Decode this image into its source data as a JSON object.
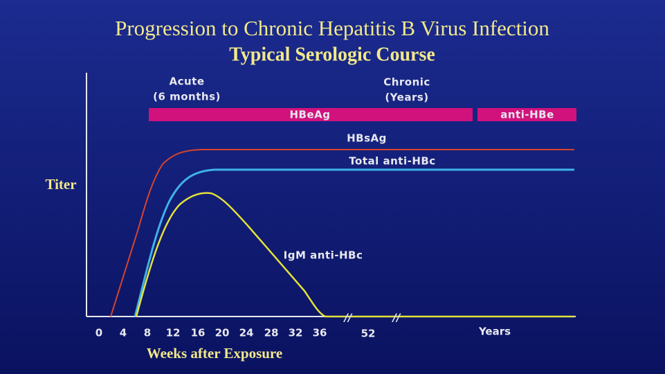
{
  "header": {
    "title": "Progression to Chronic Hepatitis B Virus Infection",
    "subtitle": "Typical Serologic Course"
  },
  "phases": {
    "acute": [
      "Acute",
      "(6 months)"
    ],
    "chronic": [
      "Chronic",
      "(Years)"
    ]
  },
  "bars": [
    "HBeAg",
    "anti-HBe"
  ],
  "curves": [
    "HBsAg",
    "Total anti-HBc",
    "IgM anti-HBc"
  ],
  "axes": {
    "y_label": "Titer",
    "x_label": "Weeks after Exposure",
    "x_ticks": [
      "0",
      "4",
      "8",
      "12",
      "16",
      "20",
      "24",
      "28",
      "32",
      "36",
      "52",
      "Years"
    ],
    "breaks": [
      "//",
      "//"
    ]
  }
}
